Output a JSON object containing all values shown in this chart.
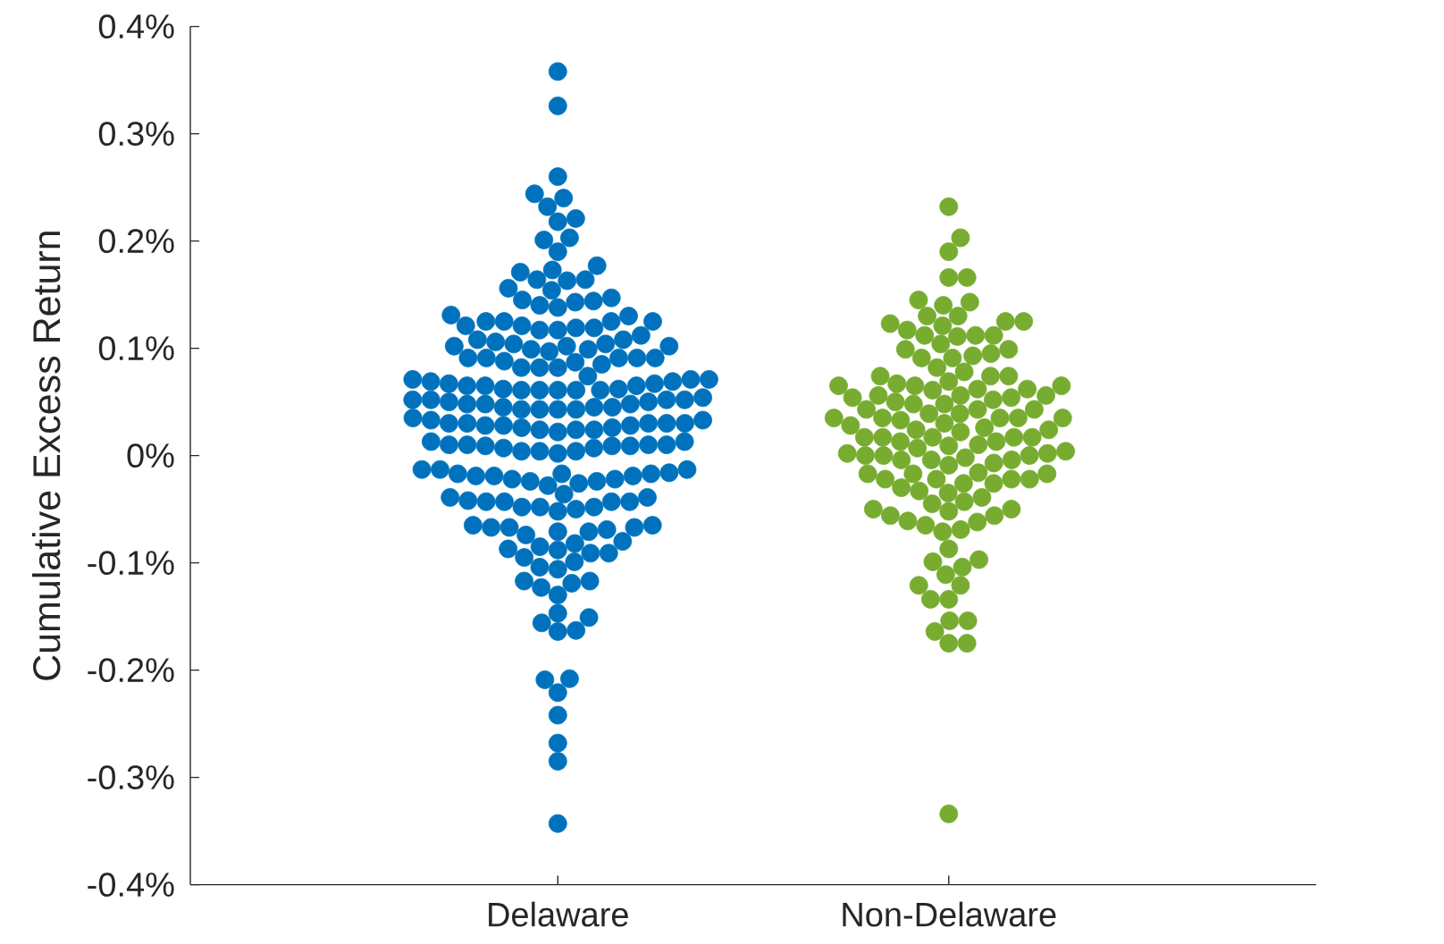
{
  "chart_data": {
    "type": "scatter",
    "ylabel": "Cumulative Excess Return",
    "marker": "circle",
    "categories": [
      "Delaware",
      "Non-Delaware"
    ],
    "ylim": [
      -0.4,
      0.4
    ],
    "yticks": [
      {
        "value": -0.4,
        "label": "-0.4%"
      },
      {
        "value": -0.3,
        "label": "-0.3%"
      },
      {
        "value": -0.2,
        "label": "-0.2%"
      },
      {
        "value": -0.1,
        "label": "-0.1%"
      },
      {
        "value": 0,
        "label": "0%"
      },
      {
        "value": 0.1,
        "label": "0.1%"
      },
      {
        "value": 0.2,
        "label": "0.2%"
      },
      {
        "value": 0.3,
        "label": "0.3%"
      },
      {
        "value": 0.4,
        "label": "0.4%"
      }
    ],
    "series": [
      {
        "color": "#0072bd",
        "x": [
          "Delaware",
          "Delaware",
          "Delaware",
          "Delaware",
          "Delaware",
          "Delaware",
          "Delaware",
          "Delaware",
          "Delaware",
          "Delaware",
          "Delaware",
          "Delaware",
          "Delaware",
          "Delaware",
          "Delaware",
          "Delaware",
          "Delaware",
          "Delaware",
          "Delaware",
          "Delaware",
          "Delaware",
          "Delaware",
          "Delaware",
          "Delaware",
          "Delaware",
          "Delaware",
          "Delaware",
          "Delaware",
          "Delaware",
          "Delaware",
          "Delaware",
          "Delaware",
          "Delaware",
          "Delaware",
          "Delaware",
          "Delaware",
          "Delaware",
          "Delaware",
          "Delaware",
          "Delaware",
          "Delaware",
          "Delaware",
          "Delaware",
          "Delaware",
          "Delaware",
          "Delaware",
          "Delaware",
          "Delaware",
          "Delaware",
          "Delaware",
          "Delaware",
          "Delaware",
          "Delaware",
          "Delaware",
          "Delaware",
          "Delaware",
          "Delaware",
          "Delaware",
          "Delaware",
          "Delaware",
          "Delaware",
          "Delaware",
          "Delaware",
          "Delaware",
          "Delaware",
          "Delaware",
          "Delaware",
          "Delaware",
          "Delaware",
          "Delaware",
          "Delaware",
          "Delaware",
          "Delaware",
          "Delaware",
          "Delaware",
          "Delaware",
          "Delaware",
          "Delaware",
          "Delaware",
          "Delaware",
          "Delaware",
          "Delaware",
          "Delaware",
          "Delaware",
          "Delaware",
          "Delaware",
          "Delaware",
          "Delaware",
          "Delaware",
          "Delaware",
          "Delaware",
          "Delaware",
          "Delaware",
          "Delaware",
          "Delaware",
          "Delaware",
          "Delaware",
          "Delaware",
          "Delaware",
          "Delaware",
          "Delaware",
          "Delaware",
          "Delaware",
          "Delaware",
          "Delaware",
          "Delaware",
          "Delaware",
          "Delaware",
          "Delaware",
          "Delaware",
          "Delaware",
          "Delaware",
          "Delaware",
          "Delaware",
          "Delaware",
          "Delaware",
          "Delaware",
          "Delaware",
          "Delaware",
          "Delaware",
          "Delaware",
          "Delaware",
          "Delaware",
          "Delaware",
          "Delaware",
          "Delaware",
          "Delaware",
          "Delaware",
          "Delaware",
          "Delaware",
          "Delaware",
          "Delaware",
          "Delaware",
          "Delaware",
          "Delaware",
          "Delaware",
          "Delaware",
          "Delaware",
          "Delaware",
          "Delaware",
          "Delaware",
          "Delaware",
          "Delaware",
          "Delaware",
          "Delaware",
          "Delaware",
          "Delaware",
          "Delaware",
          "Delaware",
          "Delaware",
          "Delaware",
          "Delaware",
          "Delaware",
          "Delaware",
          "Delaware",
          "Delaware",
          "Delaware",
          "Delaware",
          "Delaware",
          "Delaware",
          "Delaware",
          "Delaware",
          "Delaware",
          "Delaware",
          "Delaware",
          "Delaware",
          "Delaware",
          "Delaware",
          "Delaware",
          "Delaware",
          "Delaware",
          "Delaware",
          "Delaware",
          "Delaware",
          "Delaware",
          "Delaware",
          "Delaware",
          "Delaware",
          "Delaware",
          "Delaware",
          "Delaware",
          "Delaware",
          "Delaware",
          "Delaware",
          "Delaware",
          "Delaware",
          "Delaware",
          "Delaware",
          "Delaware",
          "Delaware",
          "Delaware",
          "Delaware",
          "Delaware"
        ],
        "values": [
          0.358,
          0.326,
          0.26,
          0.232,
          0.24,
          0.244,
          0.201,
          0.221,
          0.218,
          0.203,
          0.19,
          0.177,
          0.173,
          0.171,
          0.154,
          0.163,
          0.156,
          0.164,
          0.164,
          0.145,
          0.147,
          0.14,
          0.143,
          0.144,
          0.138,
          0.131,
          0.125,
          0.13,
          0.121,
          0.119,
          0.125,
          0.125,
          0.121,
          0.125,
          0.119,
          0.117,
          0.117,
          0.108,
          0.108,
          0.104,
          0.099,
          0.102,
          0.097,
          0.106,
          0.102,
          0.112,
          0.104,
          0.099,
          0.102,
          0.091,
          0.088,
          0.082,
          0.087,
          0.091,
          0.091,
          0.091,
          0.082,
          0.091,
          0.085,
          0.082,
          0.069,
          0.071,
          0.074,
          0.062,
          0.061,
          0.069,
          0.065,
          0.067,
          0.067,
          0.071,
          0.061,
          0.061,
          0.065,
          0.071,
          0.062,
          0.065,
          0.061,
          0.061,
          0.052,
          0.052,
          0.043,
          0.048,
          0.05,
          0.045,
          0.043,
          0.048,
          0.052,
          0.043,
          0.045,
          0.05,
          0.048,
          0.054,
          0.043,
          0.052,
          0.045,
          0.03,
          0.033,
          0.026,
          0.024,
          0.03,
          0.024,
          0.028,
          0.03,
          0.024,
          0.022,
          0.028,
          0.03,
          0.035,
          0.028,
          0.026,
          0.03,
          0.033,
          0.009,
          0.01,
          0.013,
          0.009,
          0.004,
          0.01,
          0.007,
          0.01,
          0.009,
          0.013,
          0.004,
          0.01,
          0.007,
          0.002,
          0.004,
          -0.019,
          -0.013,
          -0.026,
          -0.016,
          -0.022,
          -0.017,
          -0.024,
          -0.017,
          -0.019,
          -0.013,
          -0.022,
          -0.019,
          -0.017,
          -0.013,
          -0.024,
          -0.028,
          -0.048,
          -0.052,
          -0.048,
          -0.039,
          -0.043,
          -0.036,
          -0.043,
          -0.048,
          -0.042,
          -0.039,
          -0.043,
          -0.05,
          -0.043,
          -0.067,
          -0.071,
          -0.067,
          -0.074,
          -0.069,
          -0.065,
          -0.071,
          -0.067,
          -0.065,
          -0.082,
          -0.08,
          -0.085,
          -0.087,
          -0.091,
          -0.095,
          -0.088,
          -0.091,
          -0.104,
          -0.106,
          -0.099,
          -0.117,
          -0.119,
          -0.123,
          -0.117,
          -0.13,
          -0.151,
          -0.164,
          -0.147,
          -0.156,
          -0.163,
          -0.209,
          -0.208,
          -0.221,
          -0.242,
          -0.268,
          -0.285,
          -0.343
        ]
      },
      {
        "color": "#77ac30",
        "x": [
          "Non-Delaware",
          "Non-Delaware",
          "Non-Delaware",
          "Non-Delaware",
          "Non-Delaware",
          "Non-Delaware",
          "Non-Delaware",
          "Non-Delaware",
          "Non-Delaware",
          "Non-Delaware",
          "Non-Delaware",
          "Non-Delaware",
          "Non-Delaware",
          "Non-Delaware",
          "Non-Delaware",
          "Non-Delaware",
          "Non-Delaware",
          "Non-Delaware",
          "Non-Delaware",
          "Non-Delaware",
          "Non-Delaware",
          "Non-Delaware",
          "Non-Delaware",
          "Non-Delaware",
          "Non-Delaware",
          "Non-Delaware",
          "Non-Delaware",
          "Non-Delaware",
          "Non-Delaware",
          "Non-Delaware",
          "Non-Delaware",
          "Non-Delaware",
          "Non-Delaware",
          "Non-Delaware",
          "Non-Delaware",
          "Non-Delaware",
          "Non-Delaware",
          "Non-Delaware",
          "Non-Delaware",
          "Non-Delaware",
          "Non-Delaware",
          "Non-Delaware",
          "Non-Delaware",
          "Non-Delaware",
          "Non-Delaware",
          "Non-Delaware",
          "Non-Delaware",
          "Non-Delaware",
          "Non-Delaware",
          "Non-Delaware",
          "Non-Delaware",
          "Non-Delaware",
          "Non-Delaware",
          "Non-Delaware",
          "Non-Delaware",
          "Non-Delaware",
          "Non-Delaware",
          "Non-Delaware",
          "Non-Delaware",
          "Non-Delaware",
          "Non-Delaware",
          "Non-Delaware",
          "Non-Delaware",
          "Non-Delaware",
          "Non-Delaware",
          "Non-Delaware",
          "Non-Delaware",
          "Non-Delaware",
          "Non-Delaware",
          "Non-Delaware",
          "Non-Delaware",
          "Non-Delaware",
          "Non-Delaware",
          "Non-Delaware",
          "Non-Delaware",
          "Non-Delaware",
          "Non-Delaware",
          "Non-Delaware",
          "Non-Delaware",
          "Non-Delaware",
          "Non-Delaware",
          "Non-Delaware",
          "Non-Delaware",
          "Non-Delaware",
          "Non-Delaware",
          "Non-Delaware",
          "Non-Delaware",
          "Non-Delaware",
          "Non-Delaware",
          "Non-Delaware",
          "Non-Delaware",
          "Non-Delaware",
          "Non-Delaware",
          "Non-Delaware",
          "Non-Delaware",
          "Non-Delaware",
          "Non-Delaware",
          "Non-Delaware",
          "Non-Delaware",
          "Non-Delaware",
          "Non-Delaware",
          "Non-Delaware",
          "Non-Delaware",
          "Non-Delaware",
          "Non-Delaware",
          "Non-Delaware",
          "Non-Delaware",
          "Non-Delaware",
          "Non-Delaware",
          "Non-Delaware",
          "Non-Delaware",
          "Non-Delaware",
          "Non-Delaware",
          "Non-Delaware",
          "Non-Delaware",
          "Non-Delaware",
          "Non-Delaware",
          "Non-Delaware",
          "Non-Delaware",
          "Non-Delaware",
          "Non-Delaware",
          "Non-Delaware",
          "Non-Delaware",
          "Non-Delaware",
          "Non-Delaware",
          "Non-Delaware",
          "Non-Delaware",
          "Non-Delaware"
        ],
        "values": [
          0.232,
          0.203,
          0.19,
          0.166,
          0.166,
          0.145,
          0.143,
          0.14,
          0.13,
          0.13,
          0.123,
          0.125,
          0.125,
          0.121,
          0.112,
          0.099,
          0.104,
          0.117,
          0.112,
          0.111,
          0.112,
          0.099,
          0.095,
          0.091,
          0.091,
          0.093,
          0.082,
          0.074,
          0.074,
          0.078,
          0.069,
          0.065,
          0.074,
          0.065,
          0.061,
          0.056,
          0.067,
          0.065,
          0.062,
          0.056,
          0.054,
          0.043,
          0.05,
          0.048,
          0.052,
          0.043,
          0.062,
          0.056,
          0.054,
          0.043,
          0.039,
          0.035,
          0.026,
          0.022,
          0.035,
          0.03,
          0.039,
          0.035,
          0.035,
          0.033,
          0.048,
          0.035,
          0.028,
          0.024,
          0.017,
          0.013,
          0.007,
          0.017,
          0.024,
          0.017,
          0.013,
          0.017,
          0.009,
          0.017,
          0.01,
          0.002,
          -0.004,
          0.0,
          -0.002,
          -0.004,
          0.002,
          0.004,
          0.0,
          -0.007,
          -0.004,
          -0.009,
          0.0,
          -0.017,
          -0.022,
          -0.026,
          -0.022,
          -0.022,
          -0.017,
          -0.03,
          -0.016,
          -0.022,
          -0.026,
          -0.017,
          -0.045,
          -0.05,
          -0.056,
          -0.043,
          -0.039,
          -0.035,
          -0.05,
          -0.052,
          -0.056,
          -0.033,
          -0.062,
          -0.061,
          -0.071,
          -0.065,
          -0.069,
          -0.087,
          -0.099,
          -0.104,
          -0.111,
          -0.097,
          -0.121,
          -0.134,
          -0.121,
          -0.134,
          -0.154,
          -0.154,
          -0.175,
          -0.175,
          -0.164,
          -0.334
        ]
      }
    ]
  }
}
